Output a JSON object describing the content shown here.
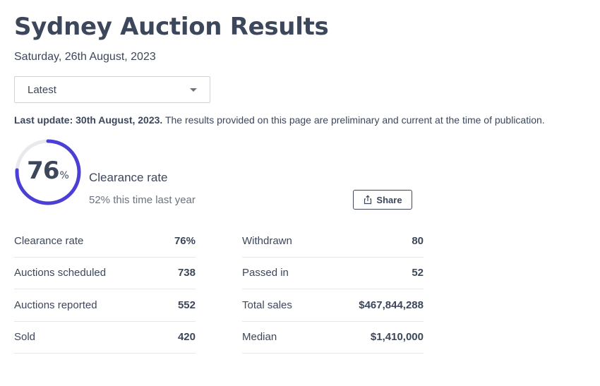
{
  "page": {
    "title": "Sydney Auction Results",
    "date": "Saturday, 26th August, 2023"
  },
  "filter": {
    "selected": "Latest"
  },
  "update": {
    "bold": "Last update: 30th August, 2023.",
    "text": " The results provided on this page are preliminary and current at the time of publication."
  },
  "clearance": {
    "value": "76",
    "percent_sign": "%",
    "fraction": 0.76,
    "label": "Clearance rate",
    "sub": "52% this time last year",
    "ring_color": "#4b3fd6",
    "track_color": "#e8e9ec"
  },
  "share": {
    "label": "Share"
  },
  "stats_left": [
    {
      "label": "Clearance rate",
      "value": "76%"
    },
    {
      "label": "Auctions scheduled",
      "value": "738"
    },
    {
      "label": "Auctions reported",
      "value": "552"
    },
    {
      "label": "Sold",
      "value": "420"
    }
  ],
  "stats_right": [
    {
      "label": "Withdrawn",
      "value": "80"
    },
    {
      "label": "Passed in",
      "value": "52"
    },
    {
      "label": "Total sales",
      "value": "$467,844,288"
    },
    {
      "label": "Median",
      "value": "$1,410,000"
    }
  ],
  "icons": {
    "dropdown": "chevron-down-icon",
    "share": "share-icon"
  }
}
